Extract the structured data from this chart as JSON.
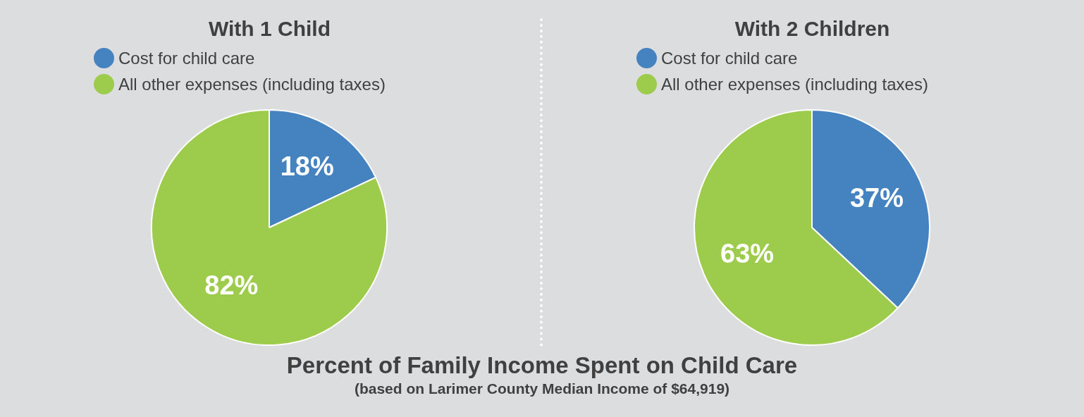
{
  "chart_data": [
    {
      "type": "pie",
      "title": "With 1 Child",
      "categories": [
        "Cost for child care",
        "All other expenses (including taxes)"
      ],
      "values": [
        18,
        82
      ],
      "colors": [
        "#4582c0",
        "#9dcb4c"
      ],
      "value_labels": [
        "18%",
        "82%"
      ],
      "legend": "top"
    },
    {
      "type": "pie",
      "title": "With 2 Children",
      "categories": [
        "Cost for child care",
        "All other expenses (including taxes)"
      ],
      "values": [
        37,
        63
      ],
      "colors": [
        "#4582c0",
        "#9dcb4c"
      ],
      "value_labels": [
        "37%",
        "63%"
      ],
      "legend": "top"
    },
    {
      "type": "other",
      "title": "Percent of Family Income Spent on Child Care",
      "subtitle": "(based on Larimer County Median Income of $64,919)"
    }
  ]
}
